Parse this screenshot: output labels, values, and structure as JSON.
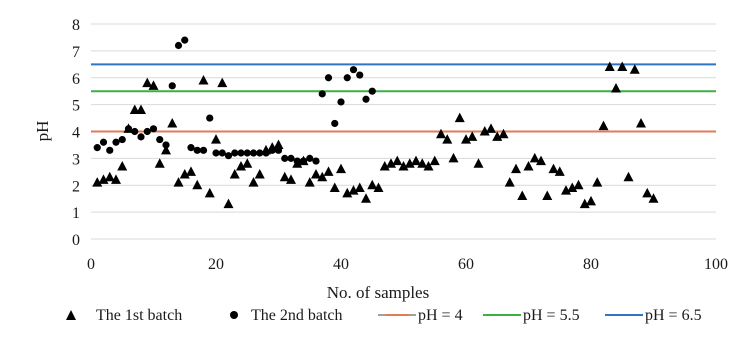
{
  "chart_data": {
    "type": "scatter",
    "title": "",
    "xlabel": "No. of samples",
    "ylabel": "pH",
    "xlim": [
      0,
      100
    ],
    "ylim": [
      0,
      8
    ],
    "xticks": [
      0,
      20,
      40,
      60,
      80,
      100
    ],
    "yticks": [
      0,
      1,
      2,
      3,
      4,
      5,
      6,
      7,
      8
    ],
    "grid": "horizontal",
    "legend_position": "bottom",
    "series": [
      {
        "name": "The 1st batch",
        "marker": "triangle",
        "color": "#000000",
        "points": [
          [
            1,
            2.1
          ],
          [
            2,
            2.2
          ],
          [
            3,
            2.3
          ],
          [
            4,
            2.2
          ],
          [
            5,
            2.7
          ],
          [
            6,
            4.1
          ],
          [
            7,
            4.8
          ],
          [
            8,
            4.8
          ],
          [
            9,
            5.8
          ],
          [
            10,
            5.7
          ],
          [
            11,
            2.8
          ],
          [
            12,
            3.3
          ],
          [
            13,
            4.3
          ],
          [
            14,
            2.1
          ],
          [
            15,
            2.4
          ],
          [
            16,
            2.5
          ],
          [
            17,
            2.0
          ],
          [
            18,
            5.9
          ],
          [
            19,
            1.7
          ],
          [
            20,
            3.7
          ],
          [
            21,
            5.8
          ],
          [
            22,
            1.3
          ],
          [
            23,
            2.4
          ],
          [
            24,
            2.7
          ],
          [
            25,
            2.8
          ],
          [
            26,
            2.1
          ],
          [
            27,
            2.4
          ],
          [
            28,
            3.3
          ],
          [
            29,
            3.4
          ],
          [
            30,
            3.5
          ],
          [
            31,
            2.3
          ],
          [
            32,
            2.2
          ],
          [
            33,
            2.8
          ],
          [
            34,
            2.9
          ],
          [
            35,
            2.1
          ],
          [
            36,
            2.4
          ],
          [
            37,
            2.3
          ],
          [
            38,
            2.5
          ],
          [
            39,
            1.9
          ],
          [
            40,
            2.6
          ],
          [
            41,
            1.7
          ],
          [
            42,
            1.8
          ],
          [
            43,
            1.9
          ],
          [
            44,
            1.5
          ],
          [
            45,
            2.0
          ],
          [
            46,
            1.9
          ],
          [
            47,
            2.7
          ],
          [
            48,
            2.8
          ],
          [
            49,
            2.9
          ],
          [
            50,
            2.7
          ],
          [
            51,
            2.8
          ],
          [
            52,
            2.9
          ],
          [
            53,
            2.8
          ],
          [
            54,
            2.7
          ],
          [
            55,
            2.9
          ],
          [
            56,
            3.9
          ],
          [
            57,
            3.7
          ],
          [
            58,
            3.0
          ],
          [
            59,
            4.5
          ],
          [
            60,
            3.7
          ],
          [
            61,
            3.8
          ],
          [
            62,
            2.8
          ],
          [
            63,
            4.0
          ],
          [
            64,
            4.1
          ],
          [
            65,
            3.8
          ],
          [
            66,
            3.9
          ],
          [
            67,
            2.1
          ],
          [
            68,
            2.6
          ],
          [
            69,
            1.6
          ],
          [
            70,
            2.7
          ],
          [
            71,
            3.0
          ],
          [
            72,
            2.9
          ],
          [
            73,
            1.6
          ],
          [
            74,
            2.6
          ],
          [
            75,
            2.5
          ],
          [
            76,
            1.8
          ],
          [
            77,
            1.9
          ],
          [
            78,
            2.0
          ],
          [
            79,
            1.3
          ],
          [
            80,
            1.4
          ],
          [
            81,
            2.1
          ],
          [
            82,
            4.2
          ],
          [
            83,
            6.4
          ],
          [
            84,
            5.6
          ],
          [
            85,
            6.4
          ],
          [
            86,
            2.3
          ],
          [
            87,
            6.3
          ],
          [
            88,
            4.3
          ],
          [
            89,
            1.7
          ],
          [
            90,
            1.5
          ]
        ]
      },
      {
        "name": "The 2nd batch",
        "marker": "circle",
        "color": "#000000",
        "points": [
          [
            1,
            3.4
          ],
          [
            2,
            3.6
          ],
          [
            3,
            3.3
          ],
          [
            4,
            3.6
          ],
          [
            5,
            3.7
          ],
          [
            6,
            4.1
          ],
          [
            7,
            4.0
          ],
          [
            8,
            3.8
          ],
          [
            9,
            4.0
          ],
          [
            10,
            4.1
          ],
          [
            11,
            3.7
          ],
          [
            12,
            3.5
          ],
          [
            13,
            5.7
          ],
          [
            14,
            7.2
          ],
          [
            15,
            7.4
          ],
          [
            16,
            3.4
          ],
          [
            17,
            3.3
          ],
          [
            18,
            3.3
          ],
          [
            19,
            4.5
          ],
          [
            20,
            3.2
          ],
          [
            21,
            3.2
          ],
          [
            22,
            3.1
          ],
          [
            23,
            3.2
          ],
          [
            24,
            3.2
          ],
          [
            25,
            3.2
          ],
          [
            26,
            3.2
          ],
          [
            27,
            3.2
          ],
          [
            28,
            3.2
          ],
          [
            29,
            3.3
          ],
          [
            30,
            3.3
          ],
          [
            31,
            3.0
          ],
          [
            32,
            3.0
          ],
          [
            33,
            2.9
          ],
          [
            34,
            2.9
          ],
          [
            35,
            3.0
          ],
          [
            36,
            2.9
          ],
          [
            37,
            5.4
          ],
          [
            38,
            6.0
          ],
          [
            39,
            4.3
          ],
          [
            40,
            5.1
          ],
          [
            41,
            6.0
          ],
          [
            42,
            6.3
          ],
          [
            43,
            6.1
          ],
          [
            44,
            5.2
          ],
          [
            45,
            5.5
          ]
        ]
      },
      {
        "name": "pH = 4",
        "type": "line",
        "y": 4,
        "color": "#e07b54"
      },
      {
        "name": "pH = 5.5",
        "type": "line",
        "y": 5.5,
        "color": "#3cb043"
      },
      {
        "name": "pH = 6.5",
        "type": "line",
        "y": 6.5,
        "color": "#2e75c6"
      }
    ]
  },
  "legend_line_color": "#a0a0a0"
}
